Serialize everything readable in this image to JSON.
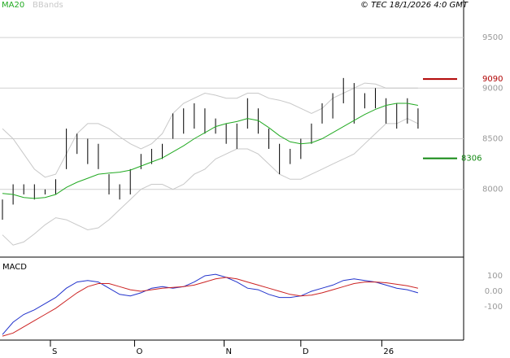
{
  "chart_data": [
    {
      "type": "ohlc",
      "x": [
        0,
        1,
        2,
        3,
        4,
        5,
        6,
        7,
        8,
        9,
        10,
        11,
        12,
        13,
        14,
        15,
        16,
        17,
        18,
        19,
        20,
        21,
        22,
        23,
        24,
        25,
        26,
        27,
        28,
        29,
        30,
        31,
        32,
        33,
        34,
        35,
        36,
        37,
        38,
        39
      ],
      "high": [
        7900,
        8050,
        8050,
        8050,
        8000,
        8100,
        8600,
        8550,
        8500,
        8450,
        8150,
        8050,
        8200,
        8350,
        8400,
        8450,
        8750,
        8800,
        8850,
        8800,
        8700,
        8650,
        8650,
        8900,
        8800,
        8600,
        8450,
        8400,
        8500,
        8650,
        8850,
        8950,
        9100,
        9050,
        8950,
        9000,
        8900,
        8850,
        8900,
        8800
      ],
      "low": [
        7700,
        7850,
        7950,
        7900,
        7950,
        7950,
        8200,
        8350,
        8250,
        8200,
        7950,
        7900,
        7950,
        8200,
        8250,
        8300,
        8500,
        8550,
        8600,
        8550,
        8550,
        8450,
        8400,
        8600,
        8550,
        8400,
        8150,
        8250,
        8300,
        8450,
        8650,
        8700,
        8850,
        8650,
        8800,
        8800,
        8650,
        8600,
        8650,
        8600
      ],
      "bar_color": "#000000",
      "series": [
        {
          "name": "MA20",
          "color": "#22aa22",
          "values": [
            7960,
            7950,
            7920,
            7910,
            7920,
            7950,
            8020,
            8070,
            8110,
            8150,
            8160,
            8170,
            8190,
            8230,
            8270,
            8310,
            8370,
            8430,
            8500,
            8560,
            8620,
            8650,
            8670,
            8700,
            8680,
            8610,
            8530,
            8470,
            8450,
            8460,
            8500,
            8560,
            8620,
            8680,
            8740,
            8790,
            8830,
            8850,
            8850,
            8830
          ]
        },
        {
          "name": "BBands",
          "color": "#c8c8c8",
          "upper": [
            8600,
            8500,
            8350,
            8200,
            8120,
            8150,
            8350,
            8550,
            8650,
            8650,
            8600,
            8520,
            8450,
            8400,
            8450,
            8550,
            8750,
            8850,
            8900,
            8950,
            8930,
            8900,
            8900,
            8950,
            8950,
            8900,
            8880,
            8850,
            8800,
            8750,
            8800,
            8900,
            8950,
            9000,
            9050,
            9040,
            9000,
            9000,
            9000,
            9000
          ],
          "lower": [
            7550,
            7450,
            7480,
            7560,
            7650,
            7720,
            7700,
            7650,
            7600,
            7620,
            7700,
            7800,
            7900,
            8000,
            8050,
            8050,
            8000,
            8050,
            8150,
            8200,
            8300,
            8350,
            8400,
            8400,
            8350,
            8250,
            8150,
            8100,
            8100,
            8150,
            8200,
            8250,
            8300,
            8350,
            8450,
            8550,
            8650,
            8650,
            8700,
            8650
          ]
        }
      ],
      "price_markers": [
        {
          "value": 9090,
          "color": "#b00000"
        },
        {
          "value": 8306,
          "color": "#118811"
        }
      ],
      "copyright": "© TEC 18/1/2026 4:0 GMT",
      "xlim": [
        -0.23,
        43.28
      ],
      "ylim": [
        7355,
        9790
      ],
      "yticks": [
        8000,
        8500,
        9000,
        9500
      ],
      "grid": true
    },
    {
      "type": "line",
      "title": "MACD",
      "x": [
        0,
        1,
        2,
        3,
        4,
        5,
        6,
        7,
        8,
        9,
        10,
        11,
        12,
        13,
        14,
        15,
        16,
        17,
        18,
        19,
        20,
        21,
        22,
        23,
        24,
        25,
        26,
        27,
        28,
        29,
        30,
        31,
        32,
        33,
        34,
        35,
        36,
        37,
        38,
        39
      ],
      "series": [
        {
          "color": "#2233cc",
          "values": [
            -280,
            -200,
            -150,
            -120,
            -80,
            -40,
            20,
            60,
            70,
            60,
            20,
            -20,
            -30,
            -10,
            20,
            30,
            20,
            30,
            60,
            100,
            110,
            90,
            60,
            20,
            10,
            -20,
            -40,
            -40,
            -30,
            0,
            20,
            40,
            70,
            80,
            70,
            60,
            40,
            20,
            10,
            -10
          ]
        },
        {
          "color": "#cc2222",
          "values": [
            -290,
            -270,
            -230,
            -190,
            -150,
            -110,
            -60,
            -10,
            30,
            50,
            50,
            30,
            10,
            0,
            10,
            20,
            25,
            30,
            40,
            60,
            80,
            90,
            80,
            60,
            40,
            20,
            0,
            -20,
            -30,
            -25,
            -10,
            10,
            30,
            50,
            60,
            60,
            55,
            45,
            35,
            20
          ]
        }
      ],
      "xlim": [
        -0.23,
        43.28
      ],
      "xticks": [
        {
          "value": 4.5,
          "label": "S"
        },
        {
          "value": 12.4,
          "label": "O"
        },
        {
          "value": 20.8,
          "label": "N"
        },
        {
          "value": 28.0,
          "label": "D"
        },
        {
          "value": 35.6,
          "label": "26"
        }
      ],
      "ylim": [
        -316,
        221
      ],
      "yticks": [
        100,
        {
          "value": 0,
          "label": "0.00"
        },
        -100
      ]
    }
  ]
}
